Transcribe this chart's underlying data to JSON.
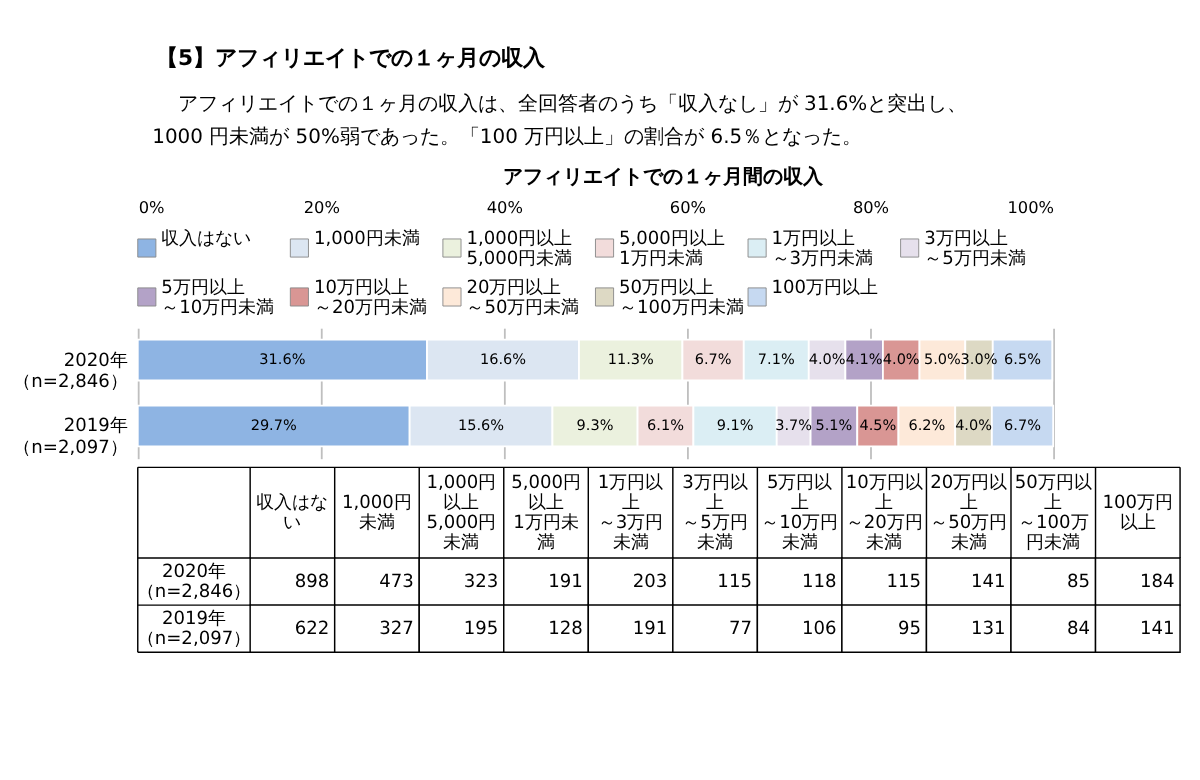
{
  "chart_data": [
    {
      "type": "bar",
      "orientation": "horizontal",
      "stacked": true,
      "title": "アフィリエイトでの１ヶ月間の収入",
      "annotations": [
        "【5】アフィリエイトでの１ヶ月の収入",
        "アフィリエイトでの１ヶ月の収入は、全回答者のうち「収入なし」が 31.6%と突出し、",
        "1000 円未満が 50%弱であった。「100 万円以上」の割合が 6.5％となった。"
      ],
      "categories": [
        "2020年（n=2,846）",
        "2019年（n=2,097）"
      ],
      "xlim": [
        0,
        100
      ],
      "xticks": [
        {
          "value": 0,
          "label": "0%"
        },
        {
          "value": 20,
          "label": "20%"
        },
        {
          "value": 40,
          "label": "40%"
        },
        {
          "value": 60,
          "label": "60%"
        },
        {
          "value": 80,
          "label": "80%"
        },
        {
          "value": 100,
          "label": "100%"
        }
      ],
      "grid": "x",
      "legend": "top",
      "series": [
        {
          "name": "収入はない",
          "color": "#8eb4e3",
          "values": [
            31.6,
            29.7
          ],
          "value_labels": [
            "31.6%",
            "29.7%"
          ]
        },
        {
          "name": "1,000円未満",
          "color": "#dce6f2",
          "values": [
            16.6,
            15.6
          ],
          "value_labels": [
            "16.6%",
            "15.6%"
          ]
        },
        {
          "name": "1,000円以上5,000円未満",
          "color": "#ebf1de",
          "values": [
            11.3,
            9.3
          ],
          "value_labels": [
            "11.3%",
            "9.3%"
          ]
        },
        {
          "name": "5,000円以上1万円未満",
          "color": "#f2dcdb",
          "values": [
            6.7,
            6.1
          ],
          "value_labels": [
            "6.7%",
            "6.1%"
          ]
        },
        {
          "name": "1万円以上～3万円未満",
          "color": "#dbeef4",
          "values": [
            7.1,
            9.1
          ],
          "value_labels": [
            "7.1%",
            "9.1%"
          ]
        },
        {
          "name": "3万円以上～5万円未満",
          "color": "#e6e0ec",
          "values": [
            4.0,
            3.7
          ],
          "value_labels": [
            "4.0%",
            "3.7%"
          ]
        },
        {
          "name": "5万円以上～10万円未満",
          "color": "#b3a2c7",
          "values": [
            4.1,
            5.1
          ],
          "value_labels": [
            "4.1%",
            "5.1%"
          ]
        },
        {
          "name": "10万円以上～20万円未満",
          "color": "#d99694",
          "values": [
            4.0,
            4.5
          ],
          "value_labels": [
            "4.0%",
            "4.5%"
          ]
        },
        {
          "name": "20万円以上～50万円未満",
          "color": "#fde9d9",
          "values": [
            5.0,
            6.2
          ],
          "value_labels": [
            "5.0%",
            "6.2%"
          ]
        },
        {
          "name": "50万円以上～100万円未満",
          "color": "#ddd9c4",
          "values": [
            3.0,
            4.0
          ],
          "value_labels": [
            "3.0%",
            "4.0%"
          ]
        },
        {
          "name": "100万円以上",
          "color": "#c6d9f1",
          "values": [
            6.5,
            6.7
          ],
          "value_labels": [
            "6.5%",
            "6.7%"
          ]
        }
      ]
    },
    {
      "type": "other",
      "annotations": [
        "収入はない",
        "1,000円未満",
        "1,000円以上5,000円未満",
        "5,000円以上1万円未満",
        "1万円以上～3万円未満",
        "3万円以上～5万円未満",
        "5万円以上～10万円未満",
        "10万円以上～20万円未満",
        "20万円以上～50万円未満",
        "50万円以上～100万円未満",
        "100万円以上",
        "2020年（n=2,846）",
        "898",
        "473",
        "323",
        "191",
        "203",
        "115",
        "118",
        "115",
        "141",
        "85",
        "184",
        "2019年（n=2,097）",
        "622",
        "327",
        "195",
        "128",
        "191",
        "77",
        "106",
        "95",
        "131",
        "84",
        "141"
      ]
    }
  ]
}
